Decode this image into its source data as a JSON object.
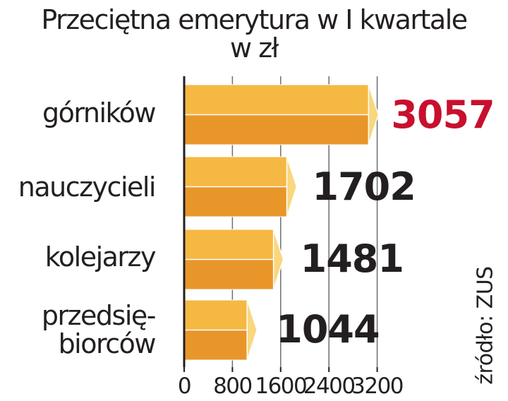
{
  "chart_data": {
    "type": "bar",
    "orientation": "horizontal",
    "title": "Przeciętna emerytura w I kwartale",
    "subtitle": "w zł",
    "categories": [
      "górników",
      "nauczycieli",
      "kolejarzy",
      "przedsię-biorców"
    ],
    "category_lines": [
      [
        "górników"
      ],
      [
        "nauczycieli"
      ],
      [
        "kolejarzy"
      ],
      [
        "przedsię-",
        "biorców"
      ]
    ],
    "values": [
      3057,
      1702,
      1481,
      1044
    ],
    "value_labels": [
      "3057",
      "1702",
      "1481",
      "1044"
    ],
    "xlim": [
      0,
      3200
    ],
    "xticks": [
      0,
      800,
      1600,
      2400,
      3200
    ],
    "xtick_labels": [
      "0",
      "800",
      "1600",
      "2400",
      "3200"
    ],
    "grid": "vertical",
    "source": "źródło: ZUS",
    "colors": {
      "bar_top": "#f5b843",
      "bar_bottom": "#e8962a",
      "bar_cap": "#f8d77e",
      "bar_edge": "#ffffff",
      "highlight_value": "#c8102e",
      "value_text": "#231f20",
      "axis": "#231f20",
      "grid": "#6d6e71"
    },
    "highlight_index": 0
  }
}
